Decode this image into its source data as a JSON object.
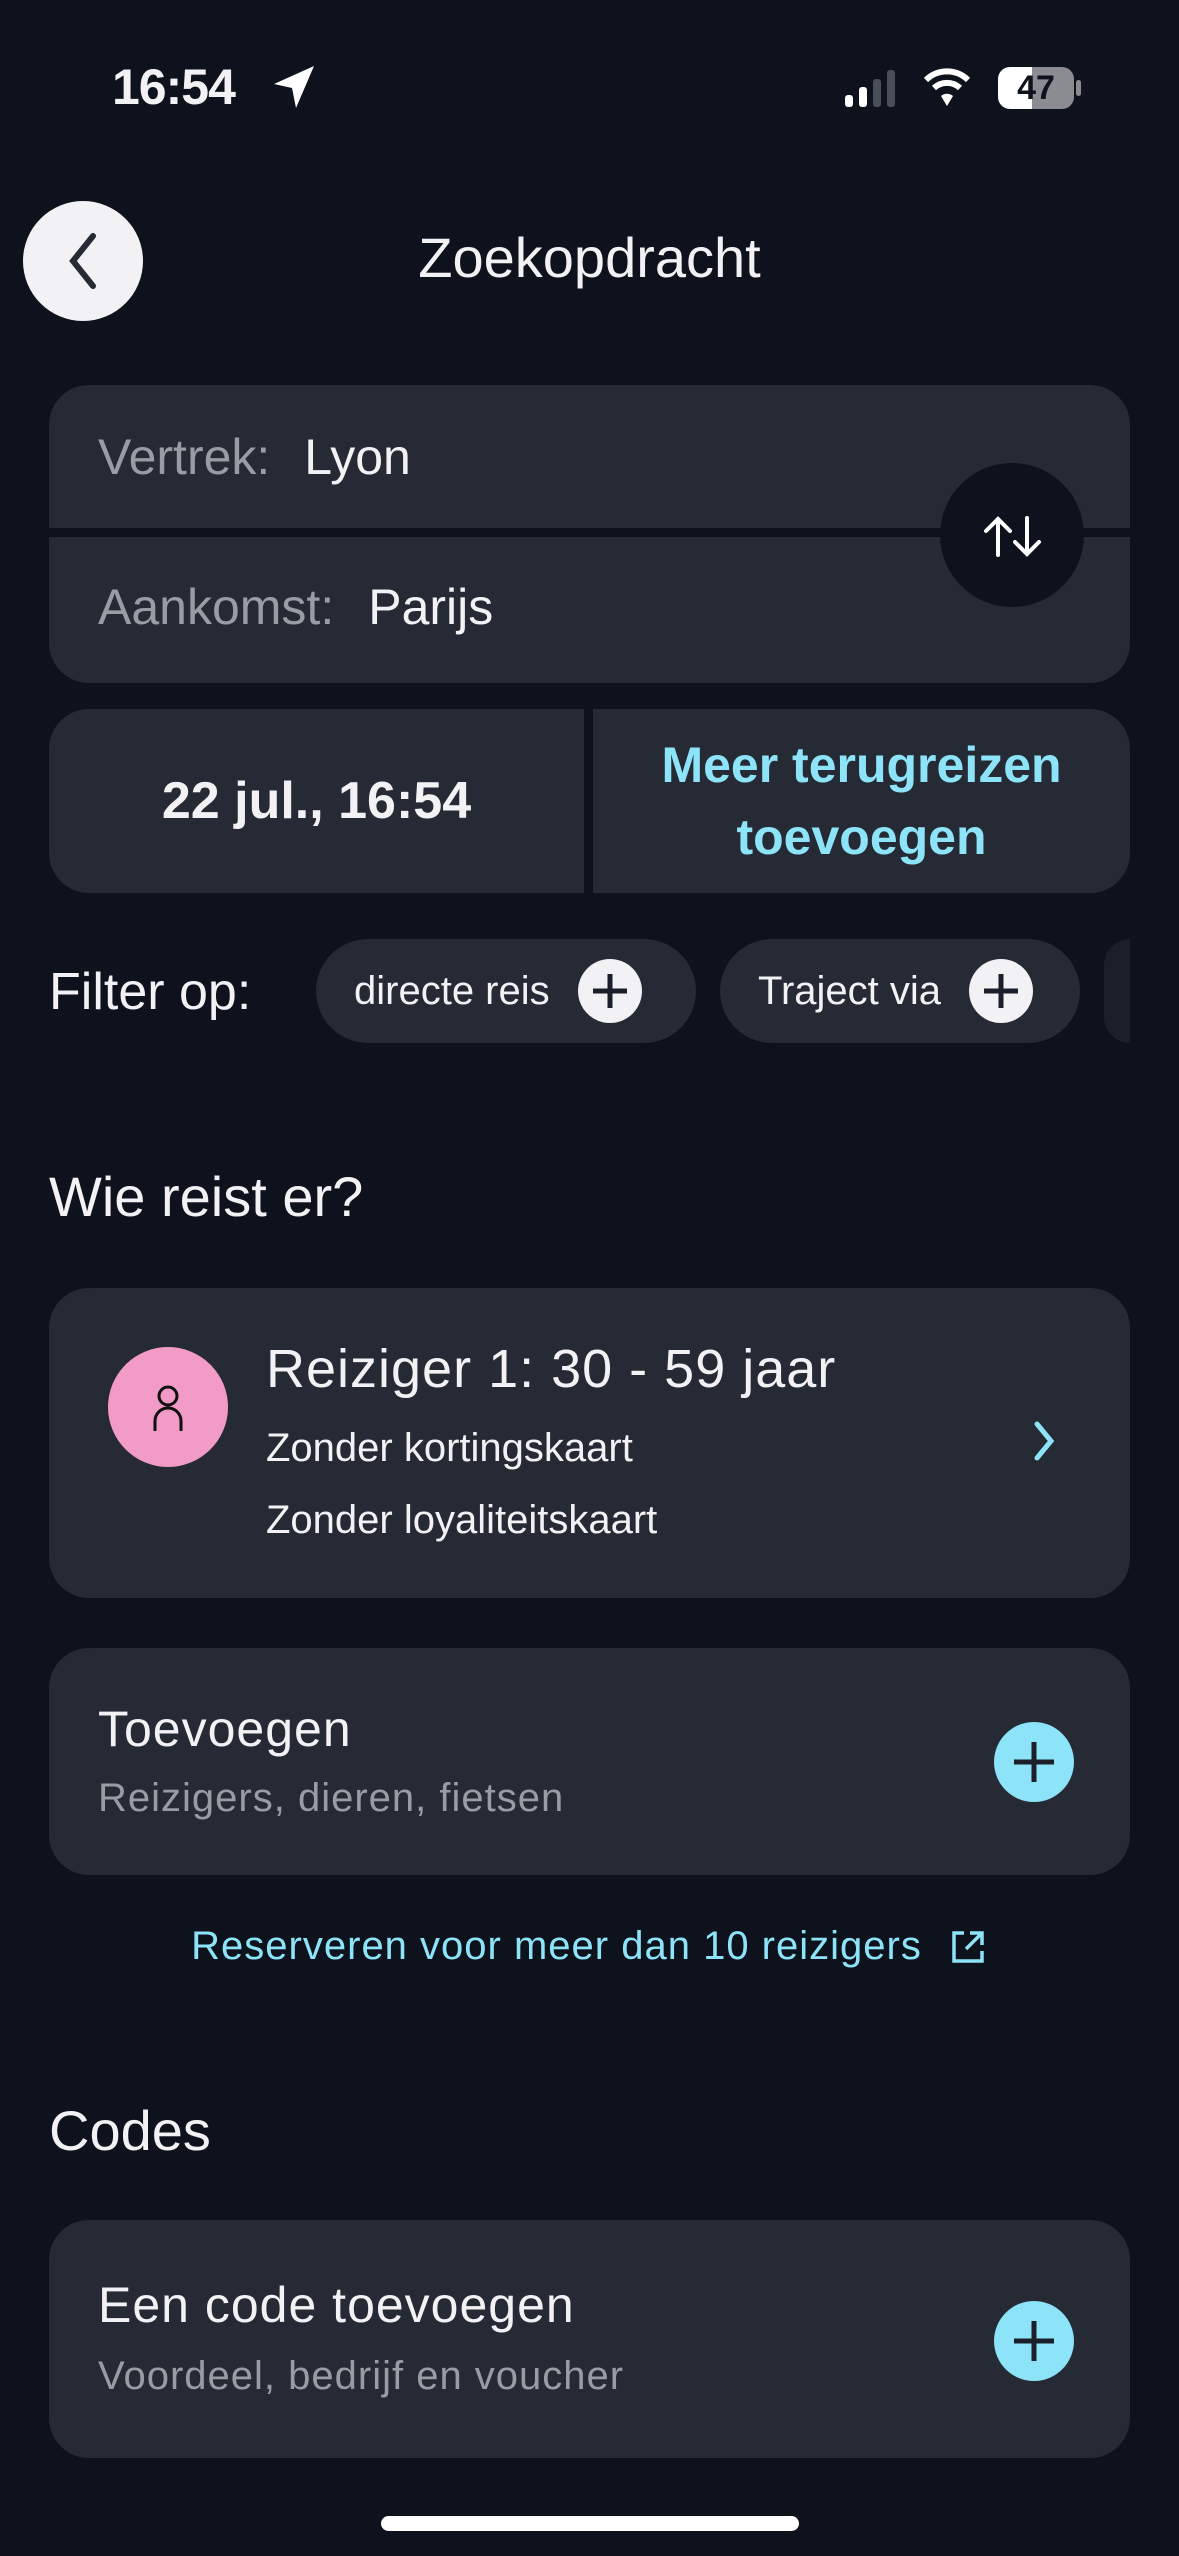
{
  "status_bar": {
    "time": "16:54",
    "battery": "47",
    "icons": [
      "location-arrow-icon",
      "signal-icon",
      "wifi-icon",
      "battery-icon"
    ]
  },
  "header": {
    "title": "Zoekopdracht",
    "back_icon": "chevron-left-icon"
  },
  "route": {
    "departure_label": "Vertrek:",
    "departure_value": "Lyon",
    "arrival_label": "Aankomst:",
    "arrival_value": "Parijs",
    "swap_icon": "swap-arrows-icon"
  },
  "date": {
    "value": "22 jul., 16:54",
    "return_line1": "Meer terugreizen",
    "return_line2": "toevoegen"
  },
  "filters": {
    "label": "Filter op:",
    "chips": [
      {
        "label": "directe reis"
      },
      {
        "label": "Traject via"
      }
    ]
  },
  "travelers": {
    "heading": "Wie reist er?",
    "traveler": {
      "title": "Reiziger 1: 30 - 59 jaar",
      "line1": "Zonder kortingskaart",
      "line2": "Zonder loyaliteitskaart"
    },
    "add": {
      "title": "Toevoegen",
      "subtitle": "Reizigers, dieren, fietsen"
    },
    "group_link": "Reserveren voor meer dan 10 reizigers"
  },
  "codes": {
    "heading": "Codes",
    "add": {
      "title": "Een code toevoegen",
      "subtitle": "Voordeel, bedrijf en voucher"
    }
  },
  "colors": {
    "background": "#0d121d",
    "card": "#252a35",
    "accent": "#8de4f8",
    "avatar": "#f29bc6"
  }
}
